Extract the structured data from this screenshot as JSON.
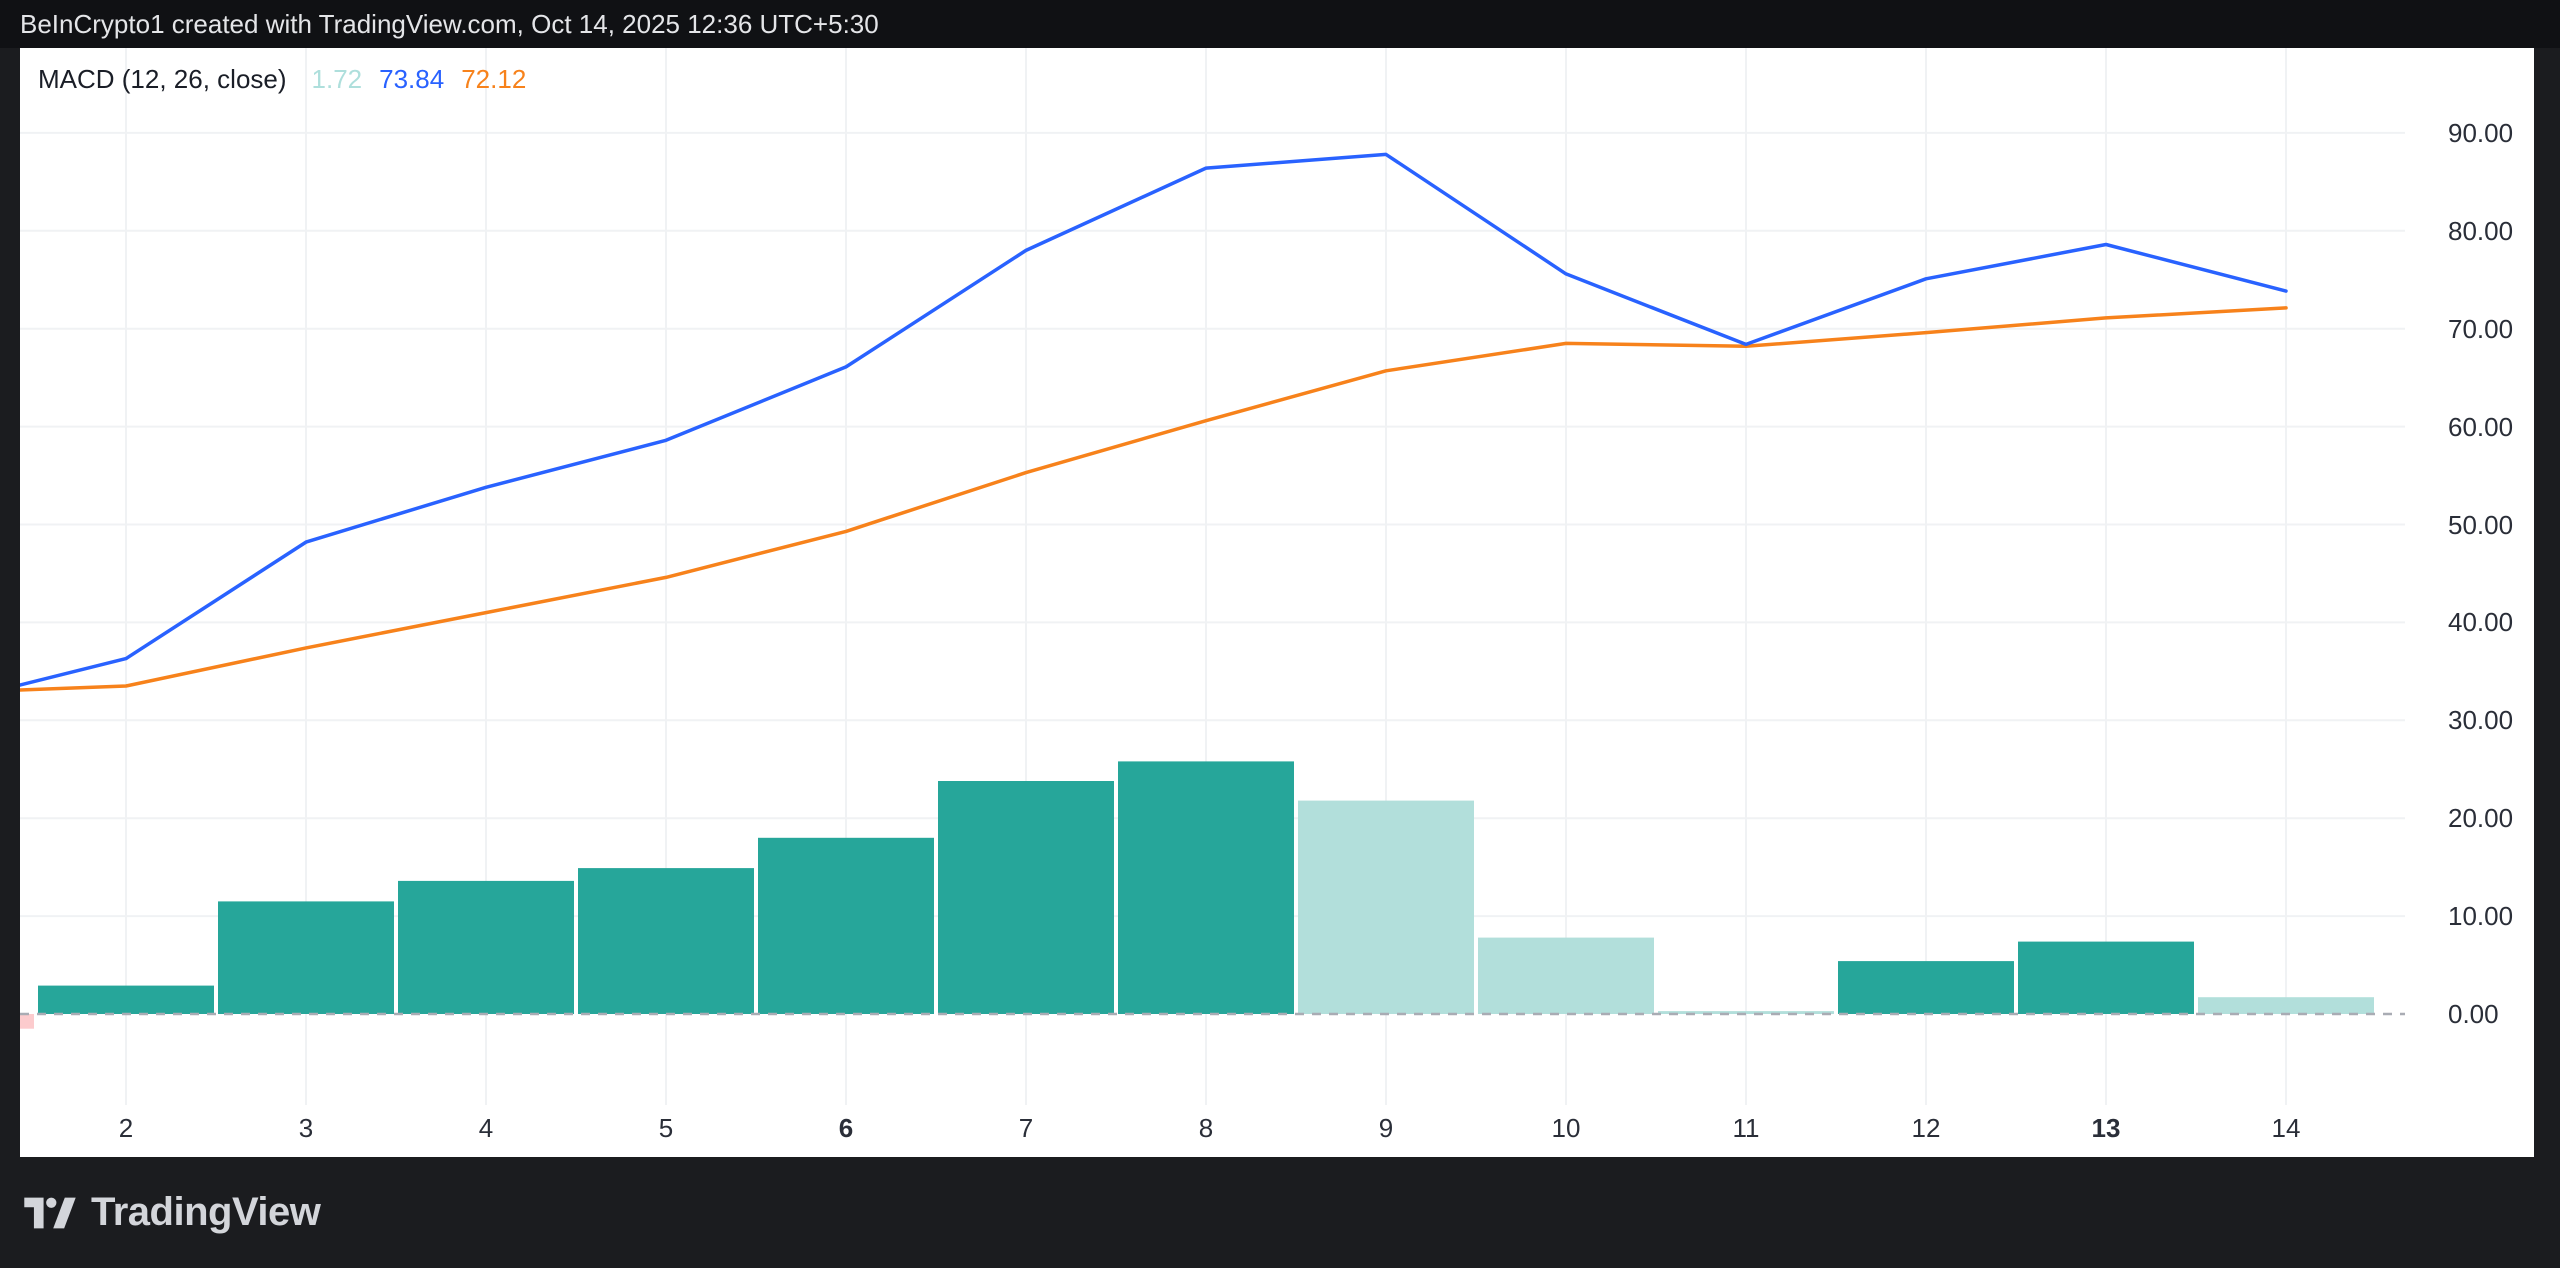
{
  "header": {
    "title": "BeInCrypto1 created with TradingView.com, Oct 14, 2025 12:36 UTC+5:30"
  },
  "legend": {
    "title": "MACD (12, 26, close)",
    "hist_value": "1.72",
    "macd_value": "73.84",
    "signal_value": "72.12"
  },
  "footer": {
    "brand": "TradingView"
  },
  "colors": {
    "macd_line": "#2962FF",
    "signal_line": "#F7821B",
    "hist_rising": "#26A69A",
    "hist_falling": "#B2DFDB",
    "hist_falling_negative": "#FCCBCD",
    "hist_value_text": "#AEDFDC",
    "zero_line": "#A9ACB4",
    "grid_line": "#F0F2F4",
    "axis_text": "#2A2E38"
  },
  "chart_data": {
    "type": "bar+line",
    "title": "MACD (12, 26, close)",
    "grid": true,
    "legend_position": "top-left",
    "ylim": [
      -9.3,
      98.7
    ],
    "y_axis": {
      "ticks": [
        {
          "value": 90,
          "label": "90.00"
        },
        {
          "value": 80,
          "label": "80.00"
        },
        {
          "value": 70,
          "label": "70.00"
        },
        {
          "value": 60,
          "label": "60.00"
        },
        {
          "value": 50,
          "label": "50.00"
        },
        {
          "value": 40,
          "label": "40.00"
        },
        {
          "value": 30,
          "label": "30.00"
        },
        {
          "value": 20,
          "label": "20.00"
        },
        {
          "value": 10,
          "label": "10.00"
        },
        {
          "value": 0,
          "label": "0.00"
        }
      ]
    },
    "x_axis": {
      "ticks": [
        {
          "day": 2,
          "label": "2",
          "bold": false
        },
        {
          "day": 3,
          "label": "3",
          "bold": false
        },
        {
          "day": 4,
          "label": "4",
          "bold": false
        },
        {
          "day": 5,
          "label": "5",
          "bold": false
        },
        {
          "day": 6,
          "label": "6",
          "bold": true
        },
        {
          "day": 7,
          "label": "7",
          "bold": false
        },
        {
          "day": 8,
          "label": "8",
          "bold": false
        },
        {
          "day": 9,
          "label": "9",
          "bold": false
        },
        {
          "day": 10,
          "label": "10",
          "bold": false
        },
        {
          "day": 11,
          "label": "11",
          "bold": false
        },
        {
          "day": 12,
          "label": "12",
          "bold": false
        },
        {
          "day": 13,
          "label": "13",
          "bold": true
        },
        {
          "day": 14,
          "label": "14",
          "bold": false
        }
      ]
    },
    "series": [
      {
        "name": "MACD line",
        "type": "line",
        "color_key": "macd_line",
        "points": [
          {
            "day": 1.41,
            "value": 33.6
          },
          {
            "day": 2,
            "value": 36.3
          },
          {
            "day": 3,
            "value": 48.2
          },
          {
            "day": 4,
            "value": 53.8
          },
          {
            "day": 5,
            "value": 58.6
          },
          {
            "day": 6,
            "value": 66.1
          },
          {
            "day": 7,
            "value": 78.0
          },
          {
            "day": 8,
            "value": 86.4
          },
          {
            "day": 9,
            "value": 87.8
          },
          {
            "day": 10,
            "value": 75.6
          },
          {
            "day": 11,
            "value": 68.4
          },
          {
            "day": 12,
            "value": 75.1
          },
          {
            "day": 13,
            "value": 78.6
          },
          {
            "day": 14,
            "value": 73.84
          }
        ]
      },
      {
        "name": "Signal line",
        "type": "line",
        "color_key": "signal_line",
        "points": [
          {
            "day": 1.41,
            "value": 33.1
          },
          {
            "day": 2,
            "value": 33.5
          },
          {
            "day": 3,
            "value": 37.4
          },
          {
            "day": 4,
            "value": 41.0
          },
          {
            "day": 5,
            "value": 44.6
          },
          {
            "day": 6,
            "value": 49.3
          },
          {
            "day": 7,
            "value": 55.3
          },
          {
            "day": 8,
            "value": 60.6
          },
          {
            "day": 9,
            "value": 65.7
          },
          {
            "day": 10,
            "value": 68.5
          },
          {
            "day": 11,
            "value": 68.2
          },
          {
            "day": 12,
            "value": 69.6
          },
          {
            "day": 13,
            "value": 71.1
          },
          {
            "day": 14,
            "value": 72.12
          }
        ]
      },
      {
        "name": "Histogram",
        "type": "bar",
        "points": [
          {
            "day": 1,
            "value": -1.5,
            "state": "falling_negative"
          },
          {
            "day": 2,
            "value": 2.9,
            "state": "rising"
          },
          {
            "day": 3,
            "value": 11.5,
            "state": "rising"
          },
          {
            "day": 4,
            "value": 13.6,
            "state": "rising"
          },
          {
            "day": 5,
            "value": 14.9,
            "state": "rising"
          },
          {
            "day": 6,
            "value": 18.0,
            "state": "rising"
          },
          {
            "day": 7,
            "value": 23.8,
            "state": "rising"
          },
          {
            "day": 8,
            "value": 25.8,
            "state": "rising"
          },
          {
            "day": 9,
            "value": 21.8,
            "state": "falling"
          },
          {
            "day": 10,
            "value": 7.8,
            "state": "falling"
          },
          {
            "day": 11,
            "value": 0.3,
            "state": "falling"
          },
          {
            "day": 12,
            "value": 5.4,
            "state": "rising"
          },
          {
            "day": 13,
            "value": 7.4,
            "state": "rising"
          },
          {
            "day": 14,
            "value": 1.72,
            "state": "falling"
          }
        ]
      }
    ],
    "legend_values": {
      "histogram": "1.72",
      "macd": "73.84",
      "signal": "72.12"
    }
  }
}
